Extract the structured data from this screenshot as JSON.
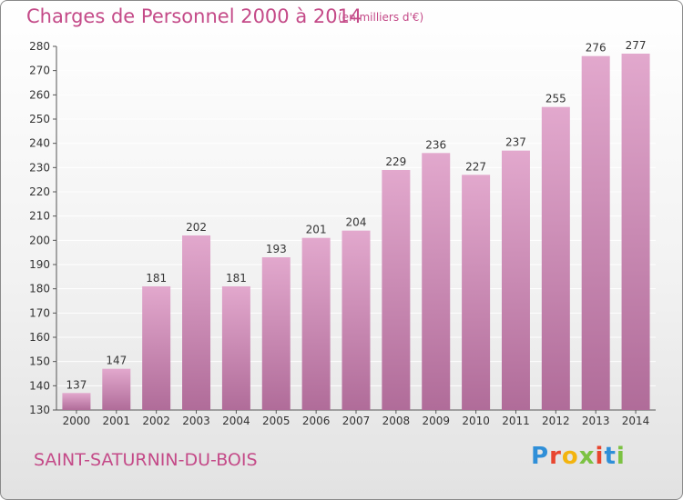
{
  "header": {
    "title": "Charges de Personnel 2000 à 2014",
    "unit": "(en milliers d'€)"
  },
  "footer": {
    "place": "SAINT-SATURNIN-DU-BOIS",
    "brand": "Proxiti",
    "brand_colors": [
      "#2f8fd8",
      "#e8462f",
      "#f3b40f",
      "#7cc242",
      "#e8462f",
      "#2f8fd8",
      "#7cc242"
    ]
  },
  "colors": {
    "bar_top": "#e2a8cd",
    "bar_bottom": "#b06c99",
    "text": "#333333",
    "grid": "#ffffff"
  },
  "chart_data": {
    "type": "bar",
    "title": "Charges de Personnel 2000 à 2014",
    "subtitle": "(en milliers d'€)",
    "categories": [
      "2000",
      "2001",
      "2002",
      "2003",
      "2004",
      "2005",
      "2006",
      "2007",
      "2008",
      "2009",
      "2010",
      "2011",
      "2012",
      "2013",
      "2014"
    ],
    "values": [
      137,
      147,
      181,
      202,
      181,
      193,
      201,
      204,
      229,
      236,
      227,
      237,
      255,
      276,
      277
    ],
    "ylim": [
      130,
      280
    ],
    "yticks": [
      130,
      140,
      150,
      160,
      170,
      180,
      190,
      200,
      210,
      220,
      230,
      240,
      250,
      260,
      270,
      280
    ],
    "grid": true,
    "data_labels": true
  }
}
